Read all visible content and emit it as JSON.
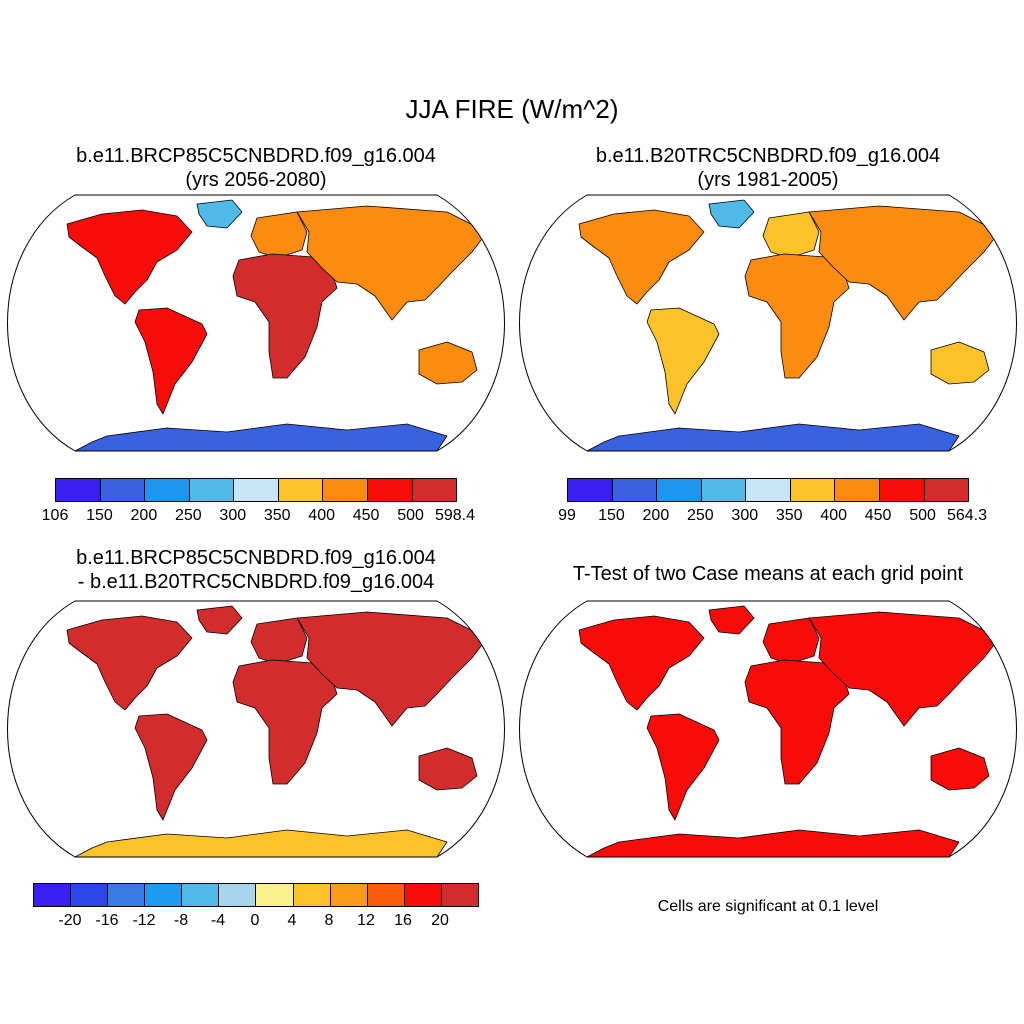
{
  "figure": {
    "title": "JJA FIRE (W/m^2)"
  },
  "panels": [
    {
      "id": "p1",
      "title_line1": "b.e11.BRCP85C5CNBDRD.f09_g16.004",
      "title_line2": "(yrs 2056-2080)",
      "colorbar": {
        "labels": [
          "106",
          "150",
          "200",
          "250",
          "300",
          "350",
          "400",
          "450",
          "500",
          "598.4"
        ],
        "colors": [
          "#3a1ef2",
          "#3a62e0",
          "#1e96f0",
          "#4fbaea",
          "#c8e6f8",
          "#fcc22a",
          "#fc8c10",
          "#f80c0a",
          "#d22c2c"
        ]
      },
      "fills": {
        "ocean": "#ffffff",
        "north_america": "#f80c0a",
        "south_america": "#f80c0a",
        "europe": "#fc8c10",
        "africa": "#d22c2c",
        "asia": "#fc8c10",
        "australia": "#fc8c10",
        "greenland": "#4fbaea",
        "antarctica": "#3a62e0"
      }
    },
    {
      "id": "p2",
      "title_line1": "b.e11.B20TRC5CNBDRD.f09_g16.004",
      "title_line2": "(yrs 1981-2005)",
      "colorbar": {
        "labels": [
          "99",
          "150",
          "200",
          "250",
          "300",
          "350",
          "400",
          "450",
          "500",
          "564.3"
        ],
        "colors": [
          "#3a1ef2",
          "#3a62e0",
          "#1e96f0",
          "#4fbaea",
          "#c8e6f8",
          "#fcc22a",
          "#fc8c10",
          "#f80c0a",
          "#d22c2c"
        ]
      },
      "fills": {
        "ocean": "#ffffff",
        "north_america": "#fc8c10",
        "south_america": "#fcc22a",
        "europe": "#fcc22a",
        "africa": "#fc8c10",
        "asia": "#fc8c10",
        "australia": "#fcc22a",
        "greenland": "#4fbaea",
        "antarctica": "#3a62e0"
      }
    },
    {
      "id": "p3",
      "title_line1": "b.e11.BRCP85C5CNBDRD.f09_g16.004",
      "title_line2": "- b.e11.B20TRC5CNBDRD.f09_g16.004",
      "colorbar": {
        "labels": [
          "-20",
          "-16",
          "-12",
          "-8",
          "-4",
          "0",
          "4",
          "8",
          "12",
          "16",
          "20"
        ],
        "colors": [
          "#3a1ef2",
          "#2a46e8",
          "#3a7ae4",
          "#1e9af0",
          "#4fbaea",
          "#a8d4ec",
          "#fcf08a",
          "#fcc22a",
          "#fc9a1c",
          "#fc5a0c",
          "#f80c0a",
          "#d22c2c"
        ]
      },
      "fills": {
        "ocean": "#ffffff",
        "north_america": "#d22c2c",
        "south_america": "#d22c2c",
        "europe": "#d22c2c",
        "africa": "#d22c2c",
        "asia": "#d22c2c",
        "australia": "#d22c2c",
        "greenland": "#d22c2c",
        "antarctica": "#fcc22a"
      }
    },
    {
      "id": "p4",
      "title_line1": "T-Test of two Case means at each grid point",
      "note": "Cells are significant at 0.1 level",
      "fills": {
        "ocean": "#ffffff",
        "north_america": "#f80c0a",
        "south_america": "#f80c0a",
        "europe": "#f80c0a",
        "africa": "#f80c0a",
        "asia": "#f80c0a",
        "australia": "#f80c0a",
        "greenland": "#f80c0a",
        "antarctica": "#f80c0a"
      }
    }
  ]
}
